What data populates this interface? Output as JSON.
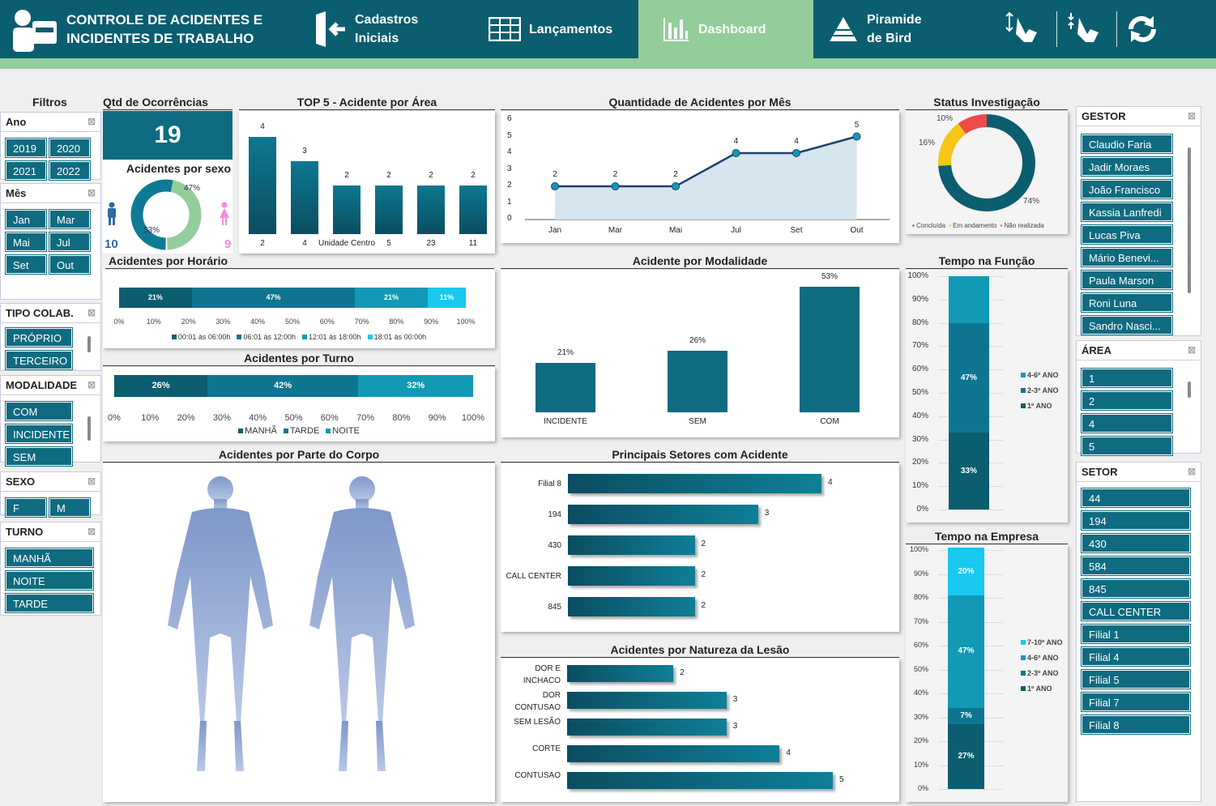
{
  "header": {
    "title_line1": "CONTROLE DE ACIDENTES E",
    "title_line2": "INCIDENTES DE TRABALHO",
    "nav": [
      {
        "l1": "Cadastros",
        "l2": "Iniciais"
      },
      {
        "l1": "Lançamentos",
        "l2": ""
      },
      {
        "l1": "Dashboard",
        "l2": ""
      },
      {
        "l1": "Piramide",
        "l2": "de Bird"
      }
    ]
  },
  "filters": {
    "title": "Filtros",
    "ano": {
      "label": "Ano",
      "items": [
        "2019",
        "2020",
        "2021",
        "2022"
      ]
    },
    "mes": {
      "label": "Mês",
      "items": [
        "Jan",
        "Mar",
        "Mai",
        "Jul",
        "Set",
        "Out"
      ]
    },
    "tipo": {
      "label": "TIPO COLAB.",
      "items": [
        "PRÓPRIO",
        "TERCEIRO"
      ]
    },
    "modalidade": {
      "label": "MODALIDADE",
      "items": [
        "COM",
        "INCIDENTE",
        "SEM"
      ]
    },
    "sexo": {
      "label": "SEXO",
      "items": [
        "F",
        "M"
      ]
    },
    "turno": {
      "label": "TURNO",
      "items": [
        "MANHÃ",
        "NOITE",
        "TARDE"
      ]
    }
  },
  "right": {
    "gestor": {
      "label": "GESTOR",
      "items": [
        "Claudio Faria",
        "Jadir Moraes",
        "João Francisco",
        "Kassia Lanfredi",
        "Lucas Piva",
        "Mário Benevi...",
        "Paula Marson",
        "Roni Luna",
        "Sandro Nasci..."
      ]
    },
    "area": {
      "label": "ÁREA",
      "items": [
        "1",
        "2",
        "4",
        "5"
      ]
    },
    "setor": {
      "label": "SETOR",
      "items": [
        "44",
        "194",
        "430",
        "584",
        "845",
        "CALL CENTER",
        "Filial 1",
        "Filial 4",
        "Filial 5",
        "Filial 7",
        "Filial 8"
      ]
    }
  },
  "kpi": {
    "title": "Qtd de Ocorrências",
    "value": "19"
  },
  "sexo_chart": {
    "title": "Acidentes por sexo",
    "male": "10",
    "female": "9",
    "male_pct": "53%",
    "female_pct": "47%",
    "male_val": 53,
    "female_val": 47
  },
  "colors": {
    "teal": "#0e6b80",
    "dark": "#0b5d70",
    "green": "#93cd9b",
    "yellow": "#f5c518",
    "red": "#ef4b4b",
    "cyan": "#19c8ef"
  },
  "chart_data": [
    {
      "id": "top5",
      "type": "bar",
      "title": "TOP 5 - Acidente por Área",
      "categories": [
        "2",
        "4",
        "Unidade Centro",
        "5",
        "23",
        "11"
      ],
      "values": [
        4,
        3,
        2,
        2,
        2,
        2
      ]
    },
    {
      "id": "mes",
      "type": "line",
      "title": "Quantidade de Acidentes por Mês",
      "categories": [
        "Jan",
        "Mar",
        "Mai",
        "Jul",
        "Set",
        "Out"
      ],
      "values": [
        2,
        2,
        2,
        4,
        4,
        5
      ],
      "yticks": [
        "0",
        "1",
        "2",
        "3",
        "4",
        "5",
        "6"
      ],
      "ylim": [
        0,
        6
      ]
    },
    {
      "id": "status",
      "type": "pie",
      "title": "Status Investigação",
      "labels": [
        "Concluída",
        "Em andamento",
        "Não realizada"
      ],
      "values": [
        74,
        16,
        10
      ],
      "pct": [
        "74%",
        "16%",
        "10%"
      ]
    },
    {
      "id": "horario",
      "type": "bar",
      "title": "Acidentes por Horário",
      "series": [
        {
          "name": "00:01 às 06:00h",
          "value": 21,
          "label": "21%"
        },
        {
          "name": "06:01 às 12:00h",
          "value": 47,
          "label": "47%"
        },
        {
          "name": "12:01 às 18:00h",
          "value": 21,
          "label": "21%"
        },
        {
          "name": "18:01 às 00:00h",
          "value": 11,
          "label": "11%"
        }
      ],
      "xticks": [
        "0%",
        "10%",
        "20%",
        "30%",
        "40%",
        "50%",
        "60%",
        "70%",
        "80%",
        "90%",
        "100%"
      ]
    },
    {
      "id": "turno",
      "type": "bar",
      "title": "Acidentes por Turno",
      "series": [
        {
          "name": "MANHÃ",
          "value": 26,
          "label": "26%"
        },
        {
          "name": "TARDE",
          "value": 42,
          "label": "42%"
        },
        {
          "name": "NOITE",
          "value": 32,
          "label": "32%"
        }
      ],
      "xticks": [
        "0%",
        "10%",
        "20%",
        "30%",
        "40%",
        "50%",
        "60%",
        "70%",
        "80%",
        "90%",
        "100%"
      ]
    },
    {
      "id": "modalidade",
      "type": "bar",
      "title": "Acidente por Modalidade",
      "categories": [
        "INCIDENTE",
        "SEM",
        "COM"
      ],
      "values": [
        21,
        26,
        53
      ],
      "labels": [
        "21%",
        "26%",
        "53%"
      ]
    },
    {
      "id": "setores",
      "type": "bar",
      "title": "Principais Setores com Acidente",
      "categories": [
        "Filial 8",
        "194",
        "430",
        "CALL CENTER",
        "845"
      ],
      "values": [
        4,
        3,
        2,
        2,
        2
      ]
    },
    {
      "id": "natureza",
      "type": "bar",
      "title": "Acidentes por Natureza da Lesão",
      "categories": [
        "DOR E INCHACO",
        "DOR CONTUSAO",
        "SEM LESÃO",
        "CORTE",
        "CONTUSAO"
      ],
      "values": [
        2,
        3,
        3,
        4,
        5
      ]
    },
    {
      "id": "funcao",
      "type": "bar",
      "title": "Tempo na Função",
      "series": [
        {
          "name": "1º ANO",
          "value": 33,
          "label": "33%"
        },
        {
          "name": "2-3º ANO",
          "value": 47,
          "label": "47%"
        },
        {
          "name": "4-6º ANO",
          "value": 20,
          "label": ""
        }
      ],
      "yticks": [
        "0%",
        "10%",
        "20%",
        "30%",
        "40%",
        "50%",
        "60%",
        "70%",
        "80%",
        "90%",
        "100%"
      ]
    },
    {
      "id": "empresa",
      "type": "bar",
      "title": "Tempo na Empresa",
      "series": [
        {
          "name": "1º ANO",
          "value": 27,
          "label": "27%"
        },
        {
          "name": "2-3º ANO",
          "value": 7,
          "label": "7%"
        },
        {
          "name": "4-6º ANO",
          "value": 47,
          "label": "47%"
        },
        {
          "name": "7-10º ANO",
          "value": 20,
          "label": "20%"
        }
      ],
      "yticks": [
        "0%",
        "10%",
        "20%",
        "30%",
        "40%",
        "50%",
        "60%",
        "70%",
        "80%",
        "90%",
        "100%"
      ]
    }
  ],
  "corpo": {
    "title": "Acidentes por Parte do Corpo"
  }
}
